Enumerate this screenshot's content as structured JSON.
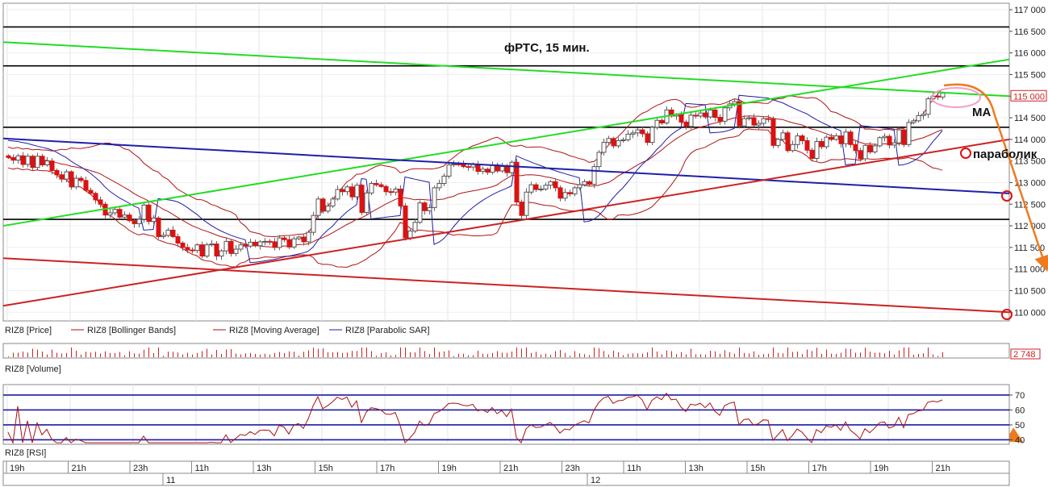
{
  "chart_data": [
    {
      "type": "candlestick",
      "title": "фРТС, 15 мин.",
      "ylim": [
        109800,
        117150
      ],
      "y_ticks": [
        "117 000",
        "116 500",
        "116 000",
        "115 500",
        "115 000",
        "114 500",
        "114 000",
        "113 500",
        "113 000",
        "112 500",
        "112 000",
        "111 500",
        "111 000",
        "110 500",
        "110 000"
      ],
      "last_price_label": "115 000",
      "horizontal_levels": [
        116600,
        115700,
        114280,
        112150
      ],
      "trendlines": [
        {
          "color": "#22dd22",
          "from": {
            "bar": 0,
            "y": 116250
          },
          "to": {
            "bar": 200,
            "y": 115000
          }
        },
        {
          "color": "#22dd22",
          "from": {
            "bar": 0,
            "y": 112000
          },
          "to": {
            "bar": 200,
            "y": 115850
          }
        },
        {
          "color": "#1f1faa",
          "from": {
            "bar": 0,
            "y": 114020
          },
          "to": {
            "bar": 200,
            "y": 112750
          }
        },
        {
          "color": "#cc2222",
          "from": {
            "bar": 0,
            "y": 111250
          },
          "to": {
            "bar": 200,
            "y": 110000
          }
        },
        {
          "color": "#cc2222",
          "from": {
            "bar": 0,
            "y": 110150
          },
          "to": {
            "bar": 200,
            "y": 114000
          }
        }
      ],
      "series": [
        {
          "name": "RIZ8 [Price]",
          "values": [
            113580,
            113520,
            113620,
            113420,
            113610,
            113350,
            113610,
            113410,
            113500,
            113280,
            113180,
            113080,
            113250,
            112900,
            113100,
            113050,
            112820,
            112750,
            112600,
            112500,
            112250,
            112300,
            112380,
            112200,
            112250,
            112120,
            112050,
            112150,
            112480,
            112100,
            112180,
            111750,
            111780,
            111900,
            111750,
            111600,
            111500,
            111440,
            111430,
            111560,
            111300,
            111560,
            111580,
            111300,
            111420,
            111640,
            111360,
            111460,
            111560,
            111530,
            111620,
            111540,
            111630,
            111640,
            111630,
            111500,
            111720,
            111680,
            111510,
            111700,
            111740,
            111630,
            111850,
            112240,
            112620,
            112340,
            112460,
            112620,
            112840,
            112790,
            112900,
            112670,
            112940,
            112310,
            112760,
            112980,
            112950,
            112910,
            112790,
            112780,
            112850,
            112460,
            111720,
            111880,
            112080,
            112530,
            112350,
            112420,
            112880,
            112980,
            113150,
            113410,
            113430,
            113420,
            113370,
            113360,
            113420,
            113260,
            113310,
            113240,
            113410,
            113270,
            113370,
            113230,
            113470,
            112550,
            112240,
            112780,
            112950,
            112840,
            112850,
            112940,
            113020,
            112880,
            112640,
            112770,
            112740,
            112880,
            112950,
            113020,
            112960,
            113370,
            113700,
            113930,
            114020,
            113850,
            113970,
            113990,
            114120,
            114150,
            114220,
            114130,
            113930,
            114280,
            114440,
            114380,
            114680,
            114540,
            114570,
            114400,
            114300,
            114560,
            114540,
            114610,
            114520,
            114680,
            114510,
            114420,
            114730,
            114820,
            114870,
            114310,
            114480,
            114500,
            114330,
            114370,
            114480,
            114470,
            113860,
            114000,
            114150,
            113740,
            113880,
            114080,
            113970,
            113750,
            113560,
            113950,
            113830,
            114050,
            114000,
            114080,
            113900,
            114170,
            113880,
            113740,
            113550,
            113860,
            113710,
            113850,
            114040,
            114070,
            113870,
            113920,
            114220,
            113880,
            114390,
            114430,
            114550,
            114580,
            114940,
            115000,
            114980,
            115070
          ]
        },
        {
          "name": "RIZ8 [Bollinger Bands]"
        },
        {
          "name": "RIZ8 [Moving Average]"
        },
        {
          "name": "RIZ8 [Parabolic SAR]"
        }
      ],
      "annotations": [
        "MA",
        "параболик"
      ]
    },
    {
      "type": "bar",
      "legend": "RIZ8 [Volume]",
      "last_value_label": "2 748"
    },
    {
      "type": "line",
      "legend": "RIZ8 [RSI]",
      "ylim": [
        37,
        77
      ],
      "y_ticks": [
        "70",
        "60",
        "50",
        "40"
      ],
      "levels": [
        70,
        60,
        50,
        40
      ]
    }
  ],
  "time_axis": {
    "labels": [
      "19h",
      "21h",
      "23h",
      "11h",
      "13h",
      "15h",
      "17h",
      "19h",
      "21h",
      "23h",
      "11h",
      "13h",
      "15h",
      "17h",
      "19h",
      "21h"
    ],
    "dates": [
      "11",
      "12"
    ]
  }
}
